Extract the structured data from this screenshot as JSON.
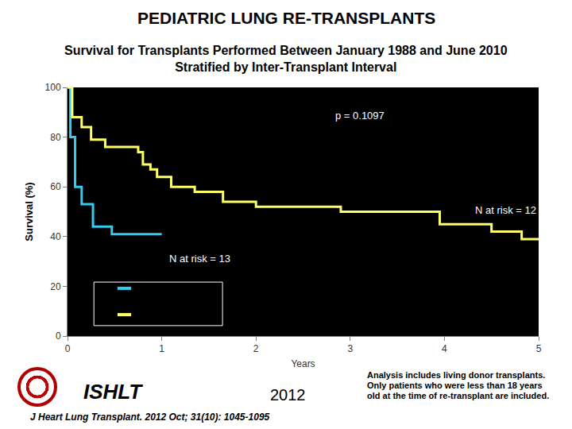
{
  "chart_data": {
    "type": "line",
    "title": "PEDIATRIC LUNG RE-TRANSPLANTS",
    "subtitle": [
      "Survival for Transplants Performed Between January 1988 and June 2010",
      "Stratified by Inter-Transplant Interval"
    ],
    "xlabel": "Years",
    "ylabel": "Survival (%)",
    "xlim": [
      0,
      5
    ],
    "xticks": [
      0,
      1,
      2,
      3,
      4,
      5
    ],
    "ylim": [
      0,
      100
    ],
    "yticks": [
      0,
      20,
      40,
      60,
      80,
      100
    ],
    "grid": false,
    "line_style": "step",
    "series": [
      {
        "color": "#33CCEE",
        "x": [
          0,
          0.03,
          0.08,
          0.15,
          0.27,
          0.35,
          0.47,
          1.0
        ],
        "values": [
          100,
          80,
          60,
          53,
          44,
          44,
          41,
          41
        ]
      },
      {
        "color": "#FFFF66",
        "x": [
          0,
          0.05,
          0.15,
          0.25,
          0.4,
          0.75,
          0.8,
          0.88,
          0.95,
          1.1,
          1.35,
          1.65,
          2.0,
          2.9,
          3.95,
          4.5,
          4.82,
          5.0
        ],
        "values": [
          100,
          88,
          84,
          79,
          76,
          74,
          69,
          67,
          64,
          60,
          58,
          54,
          52,
          50,
          45,
          42,
          39,
          39
        ]
      }
    ],
    "annotations": [
      "p = 0.1097",
      "N at risk = 12",
      "N at risk = 13"
    ],
    "source": {
      "logo_text": "ISHLT",
      "year": "2012",
      "citation": "J Heart Lung Transplant. 2012 Oct; 31(10): 1045-1095",
      "note": "Analysis includes living donor transplants. Only patients who were less than 18 years old at the time of re-transplant are included."
    }
  }
}
